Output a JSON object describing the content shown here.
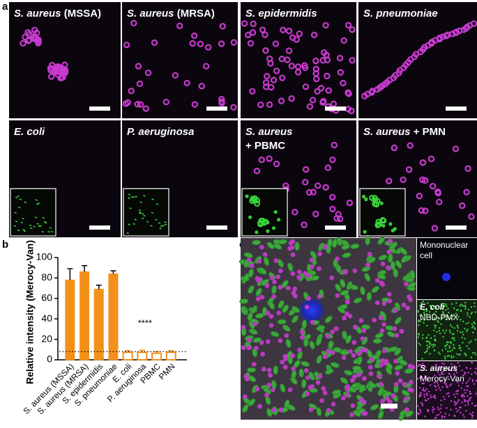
{
  "panel_labels": [
    "a",
    "b",
    "c"
  ],
  "panel_a_tiles": [
    {
      "species": "S. aureus",
      "note": "(MSSA)"
    },
    {
      "species": "S. aureus",
      "note": "(MRSA)"
    },
    {
      "species": "S. epidermidis",
      "note": null
    },
    {
      "species": "S. pneumoniae",
      "note": null
    },
    {
      "species": "E. coli",
      "note": null
    },
    {
      "species": "P. aeruginosa",
      "note": null
    },
    {
      "species": "S. aureus",
      "note": "+ PBMC"
    },
    {
      "species": "S. aureus",
      "note": "+ PMN"
    }
  ],
  "chart_data": {
    "type": "bar",
    "ylabel": "Relative intensity (Merocy-Van)",
    "categories": [
      "S. aureus (MSSA)",
      "S. aureus (MRSA)",
      "S. epidermidis",
      "S. pneumoniae",
      "E. coli",
      "P. aeruginosa",
      "PBMC",
      "PMN"
    ],
    "values": [
      78,
      86,
      69,
      84,
      8,
      8,
      7,
      8
    ],
    "errors": [
      11,
      6,
      4,
      3,
      1,
      1.5,
      1,
      1
    ],
    "filled": [
      true,
      true,
      true,
      true,
      false,
      false,
      false,
      false
    ],
    "color": "#f39019",
    "ylim": [
      0,
      100
    ],
    "yticks": [
      0,
      20,
      40,
      60,
      80,
      100
    ],
    "reference_line": 8,
    "annotation": "****"
  },
  "panel_c_side": [
    {
      "lines": [
        "Mononuclear",
        "cell"
      ]
    },
    {
      "lines": [
        "E. coli",
        "NBD-PMX"
      ]
    },
    {
      "lines": [
        "S. aureus",
        "Merocy-Van"
      ]
    }
  ]
}
